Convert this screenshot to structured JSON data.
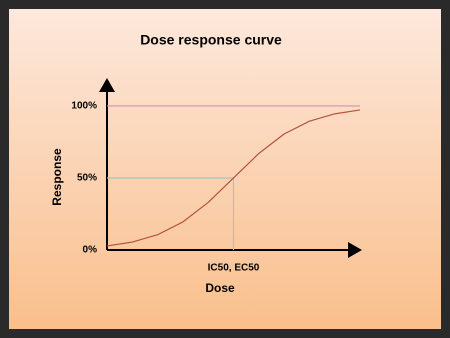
{
  "chart_data": {
    "type": "line",
    "title": "Dose response curve",
    "x_label": "Dose",
    "y_label": "Response",
    "x": [
      0,
      1,
      2,
      3,
      4,
      5,
      6,
      7,
      8,
      9,
      10
    ],
    "values": [
      2.8,
      5.5,
      10.6,
      19.5,
      33,
      50,
      67,
      80.5,
      89.4,
      94.5,
      97.2
    ],
    "color": "#b5533c",
    "xlim": [
      0,
      10
    ],
    "ylim": [
      0,
      118
    ],
    "xticks": [
      {
        "value": 5,
        "label": "IC50, EC50"
      }
    ],
    "yticks": [
      {
        "value": 0,
        "label": "0%"
      },
      {
        "value": 50,
        "label": "50%"
      },
      {
        "value": 100,
        "label": "100%"
      }
    ],
    "max_line_color": "#d98fae",
    "midpoint_line_color": "#9fc6c9"
  }
}
